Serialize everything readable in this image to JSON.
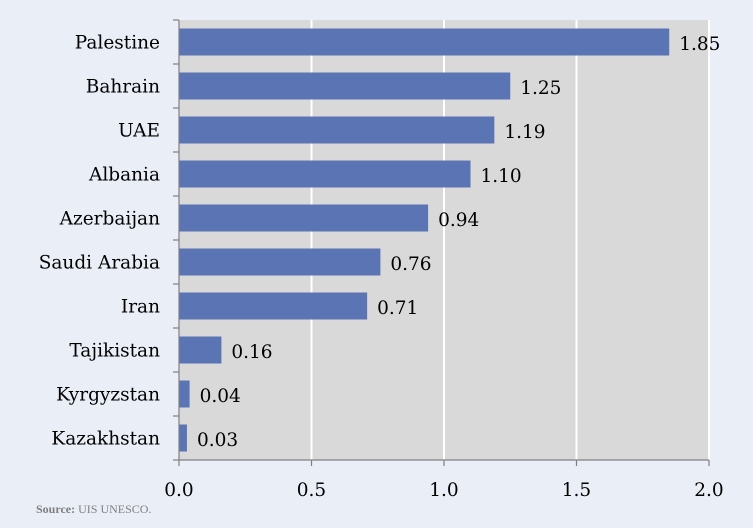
{
  "chart_data": {
    "type": "bar",
    "orientation": "horizontal",
    "categories": [
      "Palestine",
      "Bahrain",
      "UAE",
      "Albania",
      "Azerbaijan",
      "Saudi Arabia",
      "Iran",
      "Tajikistan",
      "Kyrgyzstan",
      "Kazakhstan"
    ],
    "values": [
      1.85,
      1.25,
      1.19,
      1.1,
      0.94,
      0.76,
      0.71,
      0.16,
      0.04,
      0.03
    ],
    "value_labels": [
      "1.85",
      "1.25",
      "1.19",
      "1.10",
      "0.94",
      "0.76",
      "0.71",
      "0.16",
      "0.04",
      "0.03"
    ],
    "x_ticks": [
      "0.0",
      "0.5",
      "1.0",
      "1.5",
      "2.0"
    ],
    "xlim": [
      0,
      2.0
    ],
    "grid": true,
    "bar_color": "#5b74b4",
    "plot_background": "#d9d9d9",
    "title": "",
    "xlabel": "",
    "ylabel": ""
  },
  "source": {
    "label": "Source:",
    "text": "UIS UNESCO."
  },
  "colors": {
    "background": "#eaeef7",
    "plot_area": "#d9d9d9",
    "bar": "#5b74b4",
    "gridline": "#ffffff",
    "axis": "#808080"
  }
}
